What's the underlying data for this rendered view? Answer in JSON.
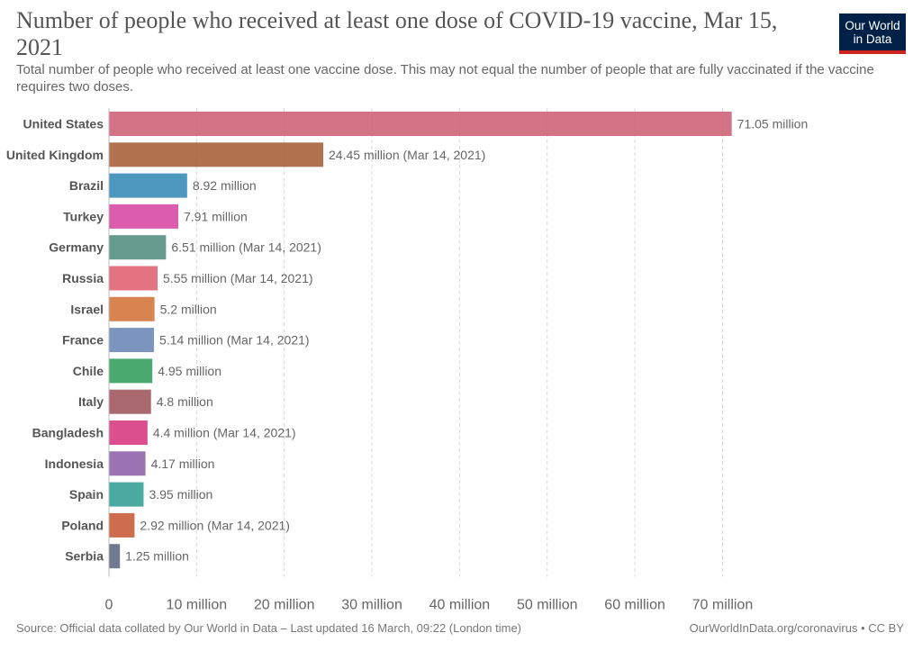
{
  "header": {
    "title": "Number of people who received at least one dose of COVID-19 vaccine, Mar 15, 2021",
    "subtitle": "Total number of people who received at least one vaccine dose. This may not equal the number of people that are fully vaccinated if the vaccine requires two doses."
  },
  "logo": {
    "text": "Our World\nin Data",
    "colors": {
      "background": "#002147",
      "stripe": "#ce261e"
    }
  },
  "footer": {
    "source": "Source: Official data collated by Our World in Data – Last updated 16 March, 09:22 (London time)",
    "credit": "OurWorldInData.org/coronavirus • CC BY"
  },
  "chart_data": {
    "type": "bar",
    "orientation": "horizontal",
    "title": "Number of people who received at least one dose of COVID-19 vaccine, Mar 15, 2021",
    "categories": [
      "United States",
      "United Kingdom",
      "Brazil",
      "Turkey",
      "Germany",
      "Russia",
      "Israel",
      "France",
      "Chile",
      "Italy",
      "Bangladesh",
      "Indonesia",
      "Spain",
      "Poland",
      "Serbia"
    ],
    "values": [
      71.05,
      24.45,
      8.92,
      7.91,
      6.51,
      5.55,
      5.2,
      5.14,
      4.95,
      4.8,
      4.4,
      4.17,
      3.95,
      2.92,
      1.25
    ],
    "value_labels": [
      "71.05 million",
      "24.45 million (Mar 14, 2021)",
      "8.92 million",
      "7.91 million",
      "6.51 million (Mar 14, 2021)",
      "5.55 million (Mar 14, 2021)",
      "5.2 million",
      "5.14 million (Mar 14, 2021)",
      "4.95 million",
      "4.8 million",
      "4.4 million (Mar 14, 2021)",
      "4.17 million",
      "3.95 million",
      "2.92 million (Mar 14, 2021)",
      "1.25 million"
    ],
    "colors": [
      "#cc5a71",
      "#a2592e",
      "#2c85b2",
      "#d6409f",
      "#4c8a7b",
      "#de5a6a",
      "#d16f33",
      "#6583b3",
      "#2a9a55",
      "#9b4f55",
      "#d6307a",
      "#8a5ba6",
      "#2a9a8f",
      "#c4532e",
      "#55637b"
    ],
    "xlim": [
      0,
      75
    ],
    "xticks": [
      0,
      10,
      20,
      30,
      40,
      50,
      60,
      70
    ],
    "xtick_labels": [
      "0",
      "10 million",
      "20 million",
      "30 million",
      "40 million",
      "50 million",
      "60 million",
      "70 million"
    ],
    "unit": "million",
    "grid": "vertical dashed"
  }
}
